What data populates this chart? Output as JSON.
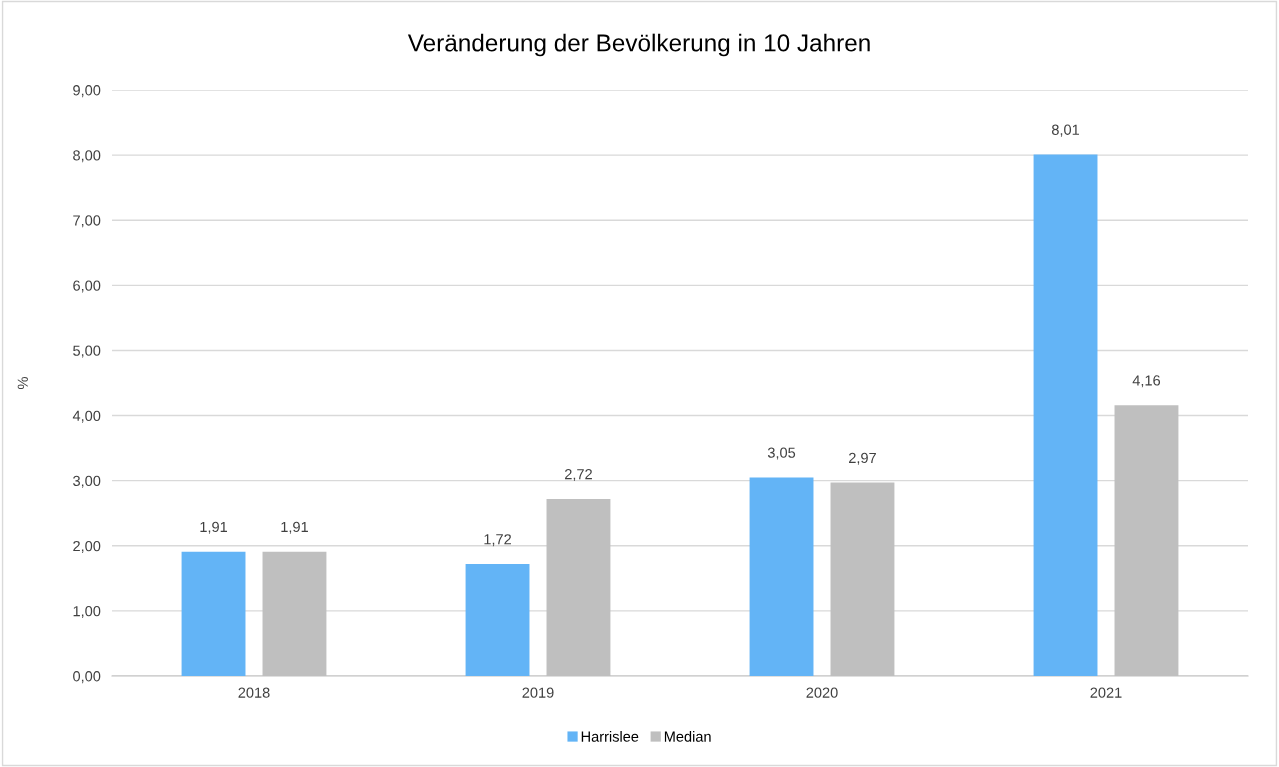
{
  "chart_data": {
    "type": "bar",
    "title": "Veränderung der Bevölkerung in 10 Jahren",
    "ylabel": "%",
    "categories": [
      "2018",
      "2019",
      "2020",
      "2021"
    ],
    "series": [
      {
        "name": "Harrislee",
        "color": "#63b4f6",
        "values": [
          1.91,
          1.72,
          3.05,
          8.01
        ],
        "value_labels": [
          "1,91",
          "1,72",
          "3,05",
          "8,01"
        ]
      },
      {
        "name": "Median",
        "color": "#bfbfbf",
        "values": [
          1.91,
          2.72,
          2.97,
          4.16
        ],
        "value_labels": [
          "1,91",
          "2,72",
          "2,97",
          "4,16"
        ]
      }
    ],
    "ylim": [
      0,
      9
    ],
    "yticks": [
      {
        "value": 0,
        "label": "0,00"
      },
      {
        "value": 1,
        "label": "1,00"
      },
      {
        "value": 2,
        "label": "2,00"
      },
      {
        "value": 3,
        "label": "3,00"
      },
      {
        "value": 4,
        "label": "4,00"
      },
      {
        "value": 5,
        "label": "5,00"
      },
      {
        "value": 6,
        "label": "6,00"
      },
      {
        "value": 7,
        "label": "7,00"
      },
      {
        "value": 8,
        "label": "8,00"
      },
      {
        "value": 9,
        "label": "9,00"
      }
    ],
    "grid": "y",
    "legend": "bottom"
  }
}
